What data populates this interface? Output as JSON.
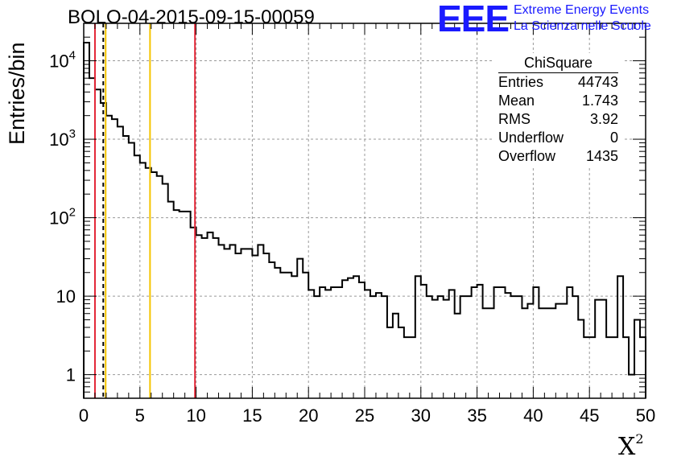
{
  "header": {
    "title": "BOLO-04-2015-09-15-00059",
    "logo_mark": "EEE",
    "logo_line1": "Extreme Energy Events",
    "logo_line2": "La Scienza nelle Scuole"
  },
  "stats": {
    "name": "ChiSquare",
    "rows": [
      {
        "label": "Entries",
        "value": "44743"
      },
      {
        "label": "Mean",
        "value": "1.743"
      },
      {
        "label": "RMS",
        "value": "3.92"
      },
      {
        "label": "Underflow",
        "value": "0"
      },
      {
        "label": "Overflow",
        "value": "1435"
      }
    ]
  },
  "chart_data": {
    "type": "histogram",
    "xlabel": "X",
    "xlabel_sup": "2",
    "ylabel": "Entries/bin",
    "xlim": [
      0,
      50
    ],
    "ylim": [
      0.5,
      30000
    ],
    "yscale": "log",
    "grid": true,
    "bin_width": 0.5,
    "x_ticks": [
      "0",
      "5",
      "10",
      "15",
      "20",
      "25",
      "30",
      "35",
      "40",
      "45",
      "50"
    ],
    "y_ticks": [
      {
        "value": 1,
        "base": "1",
        "exp": ""
      },
      {
        "value": 10,
        "base": "10",
        "exp": ""
      },
      {
        "value": 100,
        "base": "10",
        "exp": "2"
      },
      {
        "value": 1000,
        "base": "10",
        "exp": "3"
      },
      {
        "value": 10000,
        "base": "10",
        "exp": "4"
      }
    ],
    "values": [
      17000,
      6000,
      4300,
      2900,
      2000,
      1800,
      1450,
      1100,
      900,
      620,
      500,
      430,
      380,
      340,
      270,
      160,
      125,
      120,
      120,
      75,
      60,
      55,
      65,
      55,
      45,
      40,
      45,
      35,
      40,
      40,
      33,
      45,
      35,
      27,
      23,
      20,
      20,
      18,
      30,
      20,
      12,
      10,
      13,
      12,
      13,
      13,
      16,
      17,
      18,
      15,
      12,
      10,
      11,
      10,
      4,
      6,
      4,
      3,
      3,
      18,
      14,
      10,
      9,
      10,
      9,
      12,
      6,
      10,
      10,
      13,
      14,
      7,
      7,
      13,
      13,
      11,
      10,
      10,
      7,
      8,
      13,
      7,
      7,
      7,
      8,
      8,
      13,
      10,
      5,
      3,
      3,
      9,
      9,
      3,
      3,
      18,
      3,
      1,
      5,
      3
    ],
    "vlines": [
      {
        "x": 1.0,
        "color": "#e32636",
        "style": "solid"
      },
      {
        "x": 1.74,
        "color": "#000000",
        "style": "dashed"
      },
      {
        "x": 1.95,
        "color": "#f5c400",
        "style": "solid"
      },
      {
        "x": 5.9,
        "color": "#f5c400",
        "style": "solid"
      },
      {
        "x": 9.9,
        "color": "#e32636",
        "style": "solid"
      }
    ]
  }
}
